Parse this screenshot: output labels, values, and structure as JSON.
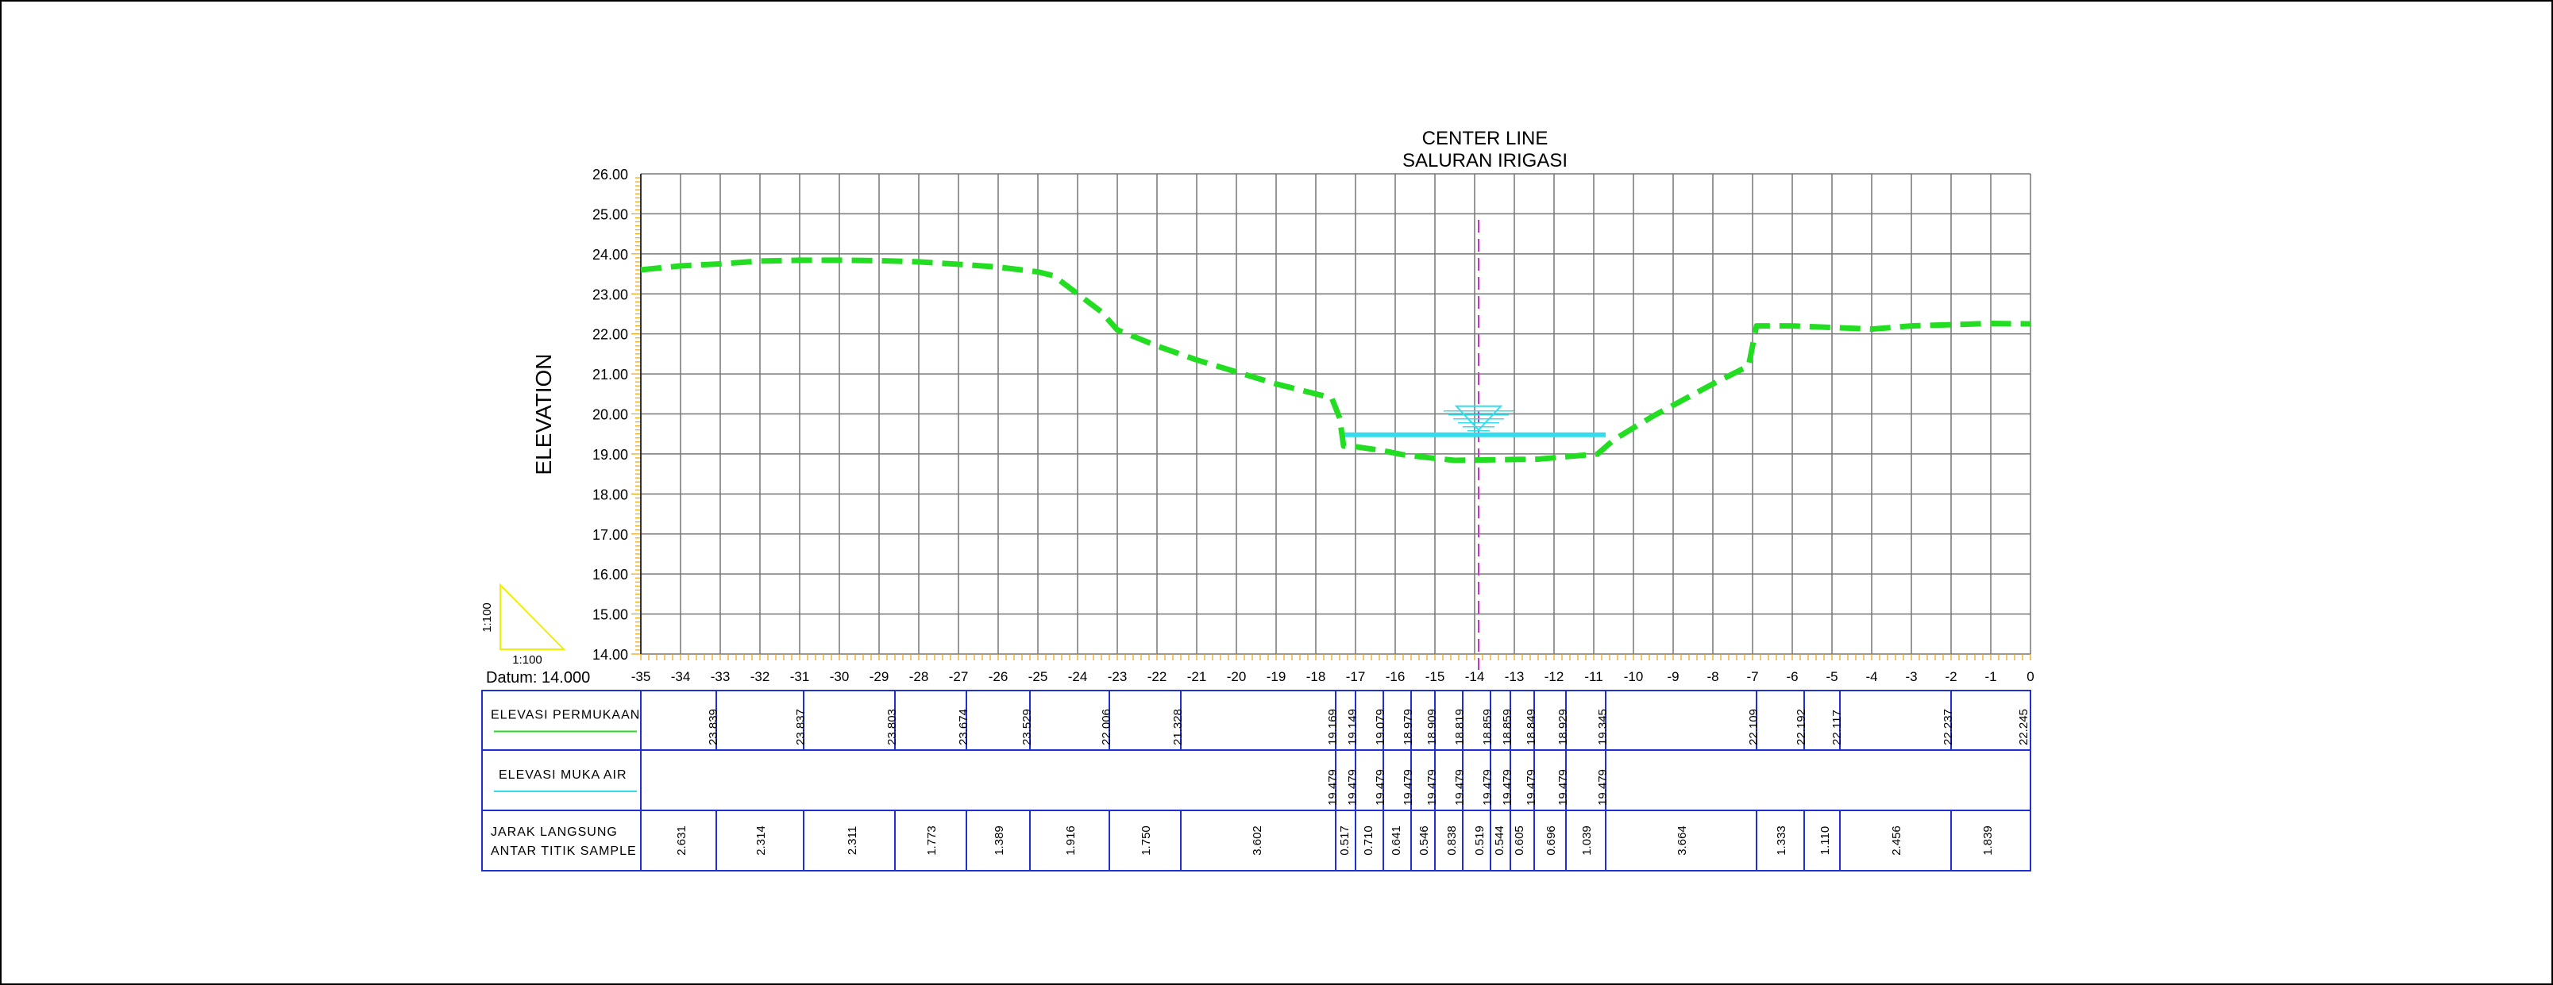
{
  "chart_data": {
    "type": "line",
    "title": "CENTER LINE",
    "subtitle": "SALURAN IRIGASI",
    "ylabel": "ELEVATION",
    "xlabel": "",
    "xlim": [
      -35,
      0
    ],
    "ylim": [
      14,
      26
    ],
    "x_ticks": [
      "-35",
      "-34",
      "-33",
      "-32",
      "-31",
      "-30",
      "-29",
      "-28",
      "-27",
      "-26",
      "-25",
      "-24",
      "-23",
      "-22",
      "-21",
      "-20",
      "-19",
      "-18",
      "-17",
      "-16",
      "-15",
      "-14",
      "-13",
      "-12",
      "-11",
      "-10",
      "-9",
      "-8",
      "-7",
      "-6",
      "-5",
      "-4",
      "-3",
      "-2",
      "-1",
      "0"
    ],
    "y_ticks": [
      "14.00",
      "15.00",
      "16.00",
      "17.00",
      "18.00",
      "19.00",
      "20.00",
      "21.00",
      "22.00",
      "23.00",
      "24.00",
      "25.00",
      "26.00"
    ],
    "grid": true,
    "datum_label": "Datum: 14.000",
    "scale_label_v": "1:100",
    "scale_label_h": "1:100",
    "colors": {
      "ground": "#22dd22",
      "water": "#33ddee",
      "centerline": "#cc33cc",
      "grid": "#777777",
      "table": "#1f2fd1",
      "ticks": "#f0a000",
      "scale_triangle": "#f0f000"
    },
    "center_line_x": -13.9,
    "series": [
      {
        "name": "ELEVASI PERMUKAAN",
        "style": "dashed",
        "points": [
          [
            -35,
            23.6
          ],
          [
            -34,
            23.7
          ],
          [
            -33,
            23.75
          ],
          [
            -32,
            23.82
          ],
          [
            -31,
            23.84
          ],
          [
            -30,
            23.84
          ],
          [
            -29,
            23.83
          ],
          [
            -28,
            23.8
          ],
          [
            -27,
            23.74
          ],
          [
            -26,
            23.67
          ],
          [
            -25,
            23.55
          ],
          [
            -24.6,
            23.45
          ],
          [
            -24,
            23.0
          ],
          [
            -23.4,
            22.55
          ],
          [
            -23,
            22.1
          ],
          [
            -22,
            21.7
          ],
          [
            -21,
            21.35
          ],
          [
            -20,
            21.05
          ],
          [
            -19,
            20.75
          ],
          [
            -18,
            20.5
          ],
          [
            -17.6,
            20.4
          ],
          [
            -17.4,
            19.9
          ],
          [
            -17.3,
            19.2
          ],
          [
            -17,
            19.18
          ],
          [
            -16.3,
            19.08
          ],
          [
            -15.8,
            18.98
          ],
          [
            -15.1,
            18.9
          ],
          [
            -14.5,
            18.84
          ],
          [
            -13.8,
            18.85
          ],
          [
            -13.1,
            18.86
          ],
          [
            -12.4,
            18.87
          ],
          [
            -11.7,
            18.93
          ],
          [
            -10.9,
            19.0
          ],
          [
            -10.5,
            19.35
          ],
          [
            -9.5,
            19.95
          ],
          [
            -8,
            20.75
          ],
          [
            -7.1,
            21.2
          ],
          [
            -6.9,
            22.2
          ],
          [
            -6,
            22.2
          ],
          [
            -5,
            22.16
          ],
          [
            -4,
            22.12
          ],
          [
            -3,
            22.2
          ],
          [
            -2,
            22.23
          ],
          [
            -1,
            22.26
          ],
          [
            0,
            22.25
          ]
        ]
      },
      {
        "name": "ELEVASI MUKA AIR",
        "style": "solid",
        "points": [
          [
            -17.3,
            19.479
          ],
          [
            -10.7,
            19.479
          ]
        ]
      }
    ]
  },
  "table": {
    "rows": [
      {
        "label_lines": [
          "ELEVASI PERMUKAAN"
        ],
        "legend_color": "#22dd22"
      },
      {
        "label_lines": [
          "ELEVASI MUKA AIR"
        ],
        "legend_color": "#33ddee"
      },
      {
        "label_lines": [
          "JARAK LANGSUNG",
          "ANTAR TITIK SAMPLE"
        ],
        "legend_color": ""
      }
    ],
    "surface_values": [
      {
        "x": -33.2,
        "value": "23.839"
      },
      {
        "x": -31.0,
        "value": "23.837"
      },
      {
        "x": -28.7,
        "value": "23.803"
      },
      {
        "x": -26.9,
        "value": "23.674"
      },
      {
        "x": -25.3,
        "value": "23.529"
      },
      {
        "x": -23.3,
        "value": "22.006"
      },
      {
        "x": -21.5,
        "value": "21.328"
      },
      {
        "x": -17.6,
        "value": "19.169"
      },
      {
        "x": -17.1,
        "value": "19.149"
      },
      {
        "x": -16.4,
        "value": "19.079"
      },
      {
        "x": -15.7,
        "value": "18.979"
      },
      {
        "x": -15.1,
        "value": "18.909"
      },
      {
        "x": -14.4,
        "value": "18.819"
      },
      {
        "x": -13.7,
        "value": "18.859"
      },
      {
        "x": -13.2,
        "value": "18.859"
      },
      {
        "x": -12.6,
        "value": "18.849"
      },
      {
        "x": -11.8,
        "value": "18.929"
      },
      {
        "x": -10.8,
        "value": "19.345"
      },
      {
        "x": -7.0,
        "value": "22.109"
      },
      {
        "x": -5.8,
        "value": "22.192"
      },
      {
        "x": -4.9,
        "value": "22.117"
      },
      {
        "x": -2.1,
        "value": "22.237"
      },
      {
        "x": -0.2,
        "value": "22.245"
      }
    ],
    "surface_dividers": [
      -33.1,
      -30.9,
      -28.6,
      -26.8,
      -25.2,
      -23.2,
      -21.4,
      -17.5,
      -17.0,
      -16.3,
      -15.6,
      -15.0,
      -14.3,
      -13.6,
      -13.1,
      -12.5,
      -11.7,
      -10.7,
      -6.9,
      -5.7,
      -4.8,
      -2.0
    ],
    "water_values": [
      {
        "x": -17.6,
        "value": "19.479"
      },
      {
        "x": -17.1,
        "value": "19.479"
      },
      {
        "x": -16.4,
        "value": "19.479"
      },
      {
        "x": -15.7,
        "value": "19.479"
      },
      {
        "x": -15.1,
        "value": "19.479"
      },
      {
        "x": -14.4,
        "value": "19.479"
      },
      {
        "x": -13.7,
        "value": "19.479"
      },
      {
        "x": -13.2,
        "value": "19.479"
      },
      {
        "x": -12.6,
        "value": "19.479"
      },
      {
        "x": -11.8,
        "value": "19.479"
      },
      {
        "x": -10.8,
        "value": "19.479"
      }
    ],
    "water_dividers": [
      -17.5,
      -17.0,
      -16.3,
      -15.6,
      -15.0,
      -14.3,
      -13.6,
      -13.1,
      -12.5,
      -11.7,
      -10.7
    ],
    "distance_values": [
      {
        "x": -34.0,
        "value": "2.631"
      },
      {
        "x": -32.0,
        "value": "2.314"
      },
      {
        "x": -29.7,
        "value": "2.311"
      },
      {
        "x": -27.7,
        "value": "1.773"
      },
      {
        "x": -26.0,
        "value": "1.389"
      },
      {
        "x": -24.2,
        "value": "1.916"
      },
      {
        "x": -22.3,
        "value": "1.750"
      },
      {
        "x": -19.5,
        "value": "3.602"
      },
      {
        "x": -17.3,
        "value": "0.517"
      },
      {
        "x": -16.7,
        "value": "0.710"
      },
      {
        "x": -16.0,
        "value": "0.641"
      },
      {
        "x": -15.3,
        "value": "0.546"
      },
      {
        "x": -14.6,
        "value": "0.838"
      },
      {
        "x": -13.9,
        "value": "0.519"
      },
      {
        "x": -13.4,
        "value": "0.544"
      },
      {
        "x": -12.9,
        "value": "0.605"
      },
      {
        "x": -12.1,
        "value": "0.696"
      },
      {
        "x": -11.2,
        "value": "1.039"
      },
      {
        "x": -8.8,
        "value": "3.664"
      },
      {
        "x": -6.3,
        "value": "1.333"
      },
      {
        "x": -5.2,
        "value": "1.110"
      },
      {
        "x": -3.4,
        "value": "2.456"
      },
      {
        "x": -1.1,
        "value": "1.839"
      }
    ],
    "distance_dividers": [
      -33.1,
      -30.9,
      -28.6,
      -26.8,
      -25.2,
      -23.2,
      -21.4,
      -17.5,
      -17.0,
      -16.3,
      -15.6,
      -15.0,
      -14.3,
      -13.6,
      -13.1,
      -12.5,
      -11.7,
      -10.7,
      -6.9,
      -5.7,
      -4.8,
      -2.0
    ]
  }
}
